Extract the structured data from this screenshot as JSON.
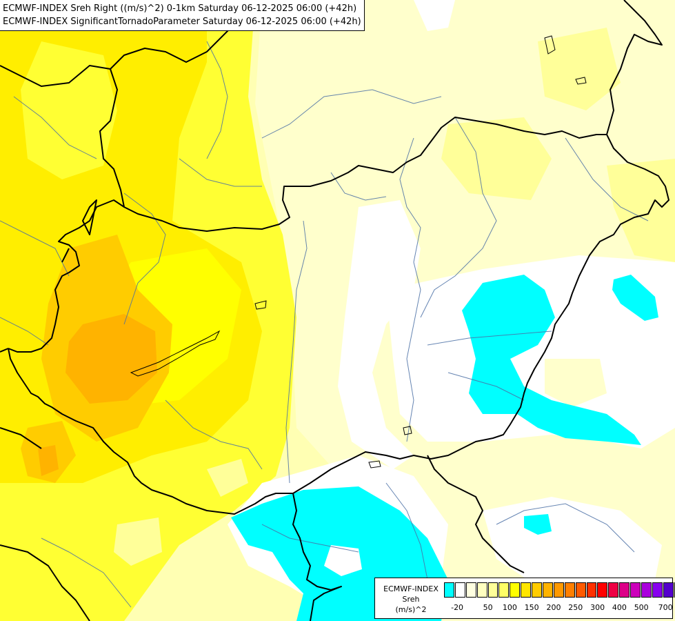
{
  "map": {
    "title_lines": [
      "ECMWF-INDEX Sreh Right ((m/s)^2) 0-1km Saturday 06-12-2025 06:00 (+42h)",
      "ECMWF-INDEX SignificantTornadoParameter Saturday 06-12-2025 06:00 (+42h)"
    ]
  },
  "legend": {
    "label_lines": [
      "ECMWF-INDEX",
      "Sreh",
      "(m/s)^2"
    ],
    "swatches": [
      {
        "color": "#00ffff"
      },
      {
        "color": "#ffffff"
      },
      {
        "color": "#ffffe0"
      },
      {
        "color": "#ffffc0"
      },
      {
        "color": "#ffff99"
      },
      {
        "color": "#ffff66"
      },
      {
        "color": "#ffff00"
      },
      {
        "color": "#ffe600"
      },
      {
        "color": "#ffcc00"
      },
      {
        "color": "#ffb300"
      },
      {
        "color": "#ff9900"
      },
      {
        "color": "#ff7f00"
      },
      {
        "color": "#ff5a00"
      },
      {
        "color": "#ff3000"
      },
      {
        "color": "#ff0000"
      },
      {
        "color": "#ee0044"
      },
      {
        "color": "#dd0088"
      },
      {
        "color": "#cc00bb"
      },
      {
        "color": "#aa00dd"
      },
      {
        "color": "#8800ee"
      },
      {
        "color": "#5500cc"
      },
      {
        "color": "#000088"
      }
    ],
    "ticks": [
      "-20",
      "50",
      "100",
      "150",
      "200",
      "250",
      "300",
      "400",
      "500",
      "700"
    ]
  },
  "colors": {
    "cyan": "#00ffff",
    "border": "#000000",
    "river": "#4a6fa5"
  }
}
